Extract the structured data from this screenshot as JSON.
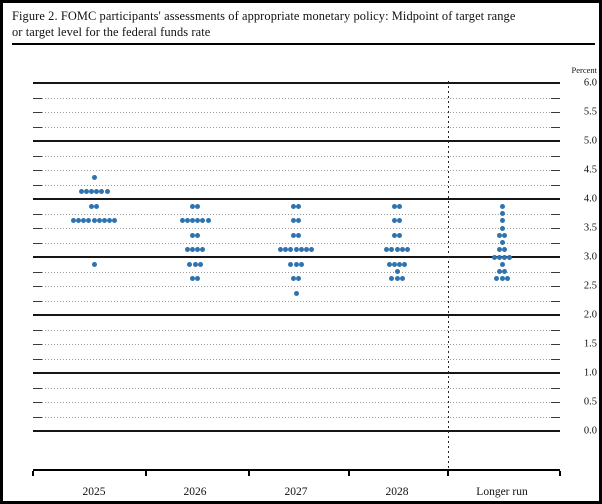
{
  "figure": {
    "title_lines": [
      "Figure 2. FOMC participants' assessments of appropriate monetary policy: Midpoint of target range",
      "or target level for the federal funds rate"
    ]
  },
  "chart_data": {
    "type": "scatter",
    "subtype": "fomc-dot-plot",
    "title": "Figure 2. FOMC participants' assessments of appropriate monetary policy: Midpoint of target range or target level for the federal funds rate",
    "unit_label": "Percent",
    "categories": [
      "2025",
      "2026",
      "2027",
      "2028",
      "Longer run"
    ],
    "ylim": [
      0.0,
      6.0
    ],
    "y_tick_labels": [
      "6.0",
      "5.5",
      "5.0",
      "4.5",
      "4.0",
      "3.5",
      "3.0",
      "2.5",
      "2.0",
      "1.5",
      "1.0",
      "0.5",
      "0.0"
    ],
    "gridlines": {
      "solid_at_integers": true,
      "dotted_step": 0.25,
      "grid_on": true
    },
    "legend_position": "none",
    "dot_color": "#2e73ae",
    "separator_before_category": "Longer run",
    "dots": [
      {
        "category": "2025",
        "counts": {
          "4.375": 1,
          "4.125": 6,
          "3.875": 2,
          "3.625": 9,
          "2.875": 1
        }
      },
      {
        "category": "2026",
        "counts": {
          "3.875": 2,
          "3.625": 6,
          "3.375": 2,
          "3.125": 4,
          "2.875": 3,
          "2.625": 2
        }
      },
      {
        "category": "2027",
        "counts": {
          "3.875": 2,
          "3.625": 2,
          "3.375": 2,
          "3.125": 7,
          "2.875": 3,
          "2.625": 2,
          "2.375": 1
        }
      },
      {
        "category": "2028",
        "counts": {
          "3.875": 2,
          "3.625": 2,
          "3.375": 2,
          "3.125": 5,
          "2.875": 4,
          "2.75": 1,
          "2.625": 3
        }
      },
      {
        "category": "Longer run",
        "counts": {
          "3.875": 1,
          "3.75": 1,
          "3.625": 1,
          "3.5": 1,
          "3.375": 2,
          "3.25": 1,
          "3.125": 2,
          "3.0": 4,
          "2.875": 1,
          "2.75": 2,
          "2.625": 3
        }
      }
    ]
  }
}
